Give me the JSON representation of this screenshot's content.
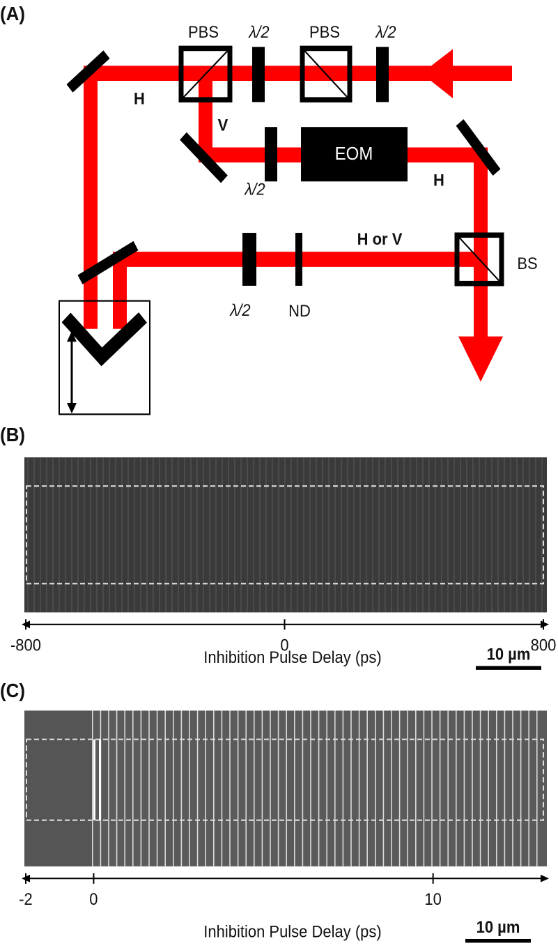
{
  "panel_a": {
    "label": "(A)",
    "components": {
      "pbs_left": "PBS",
      "waveplate_top_left": "λ/2",
      "pbs_right": "PBS",
      "waveplate_top_right": "λ/2",
      "beam_h_left": "H",
      "beam_v": "V",
      "waveplate_mid": "λ/2",
      "eom": "EOM",
      "beam_h_right": "H",
      "beam_h_or_v": "H or V",
      "bs": "BS",
      "waveplate_bottom": "λ/2",
      "nd": "ND"
    }
  },
  "panel_b": {
    "label": "(B)",
    "axis": {
      "title": "Inhibition Pulse Delay (ps)",
      "xlim": [
        -800,
        800
      ],
      "xticks": [
        -800,
        0,
        800
      ]
    },
    "scale_bar": "10 µm"
  },
  "panel_c": {
    "label": "(C)",
    "axis": {
      "title": "Inhibition Pulse Delay (ps)",
      "xlim": [
        -2,
        13.25
      ],
      "xticks": [
        -2,
        0,
        10
      ]
    },
    "scale_bar": "10 µm"
  }
}
